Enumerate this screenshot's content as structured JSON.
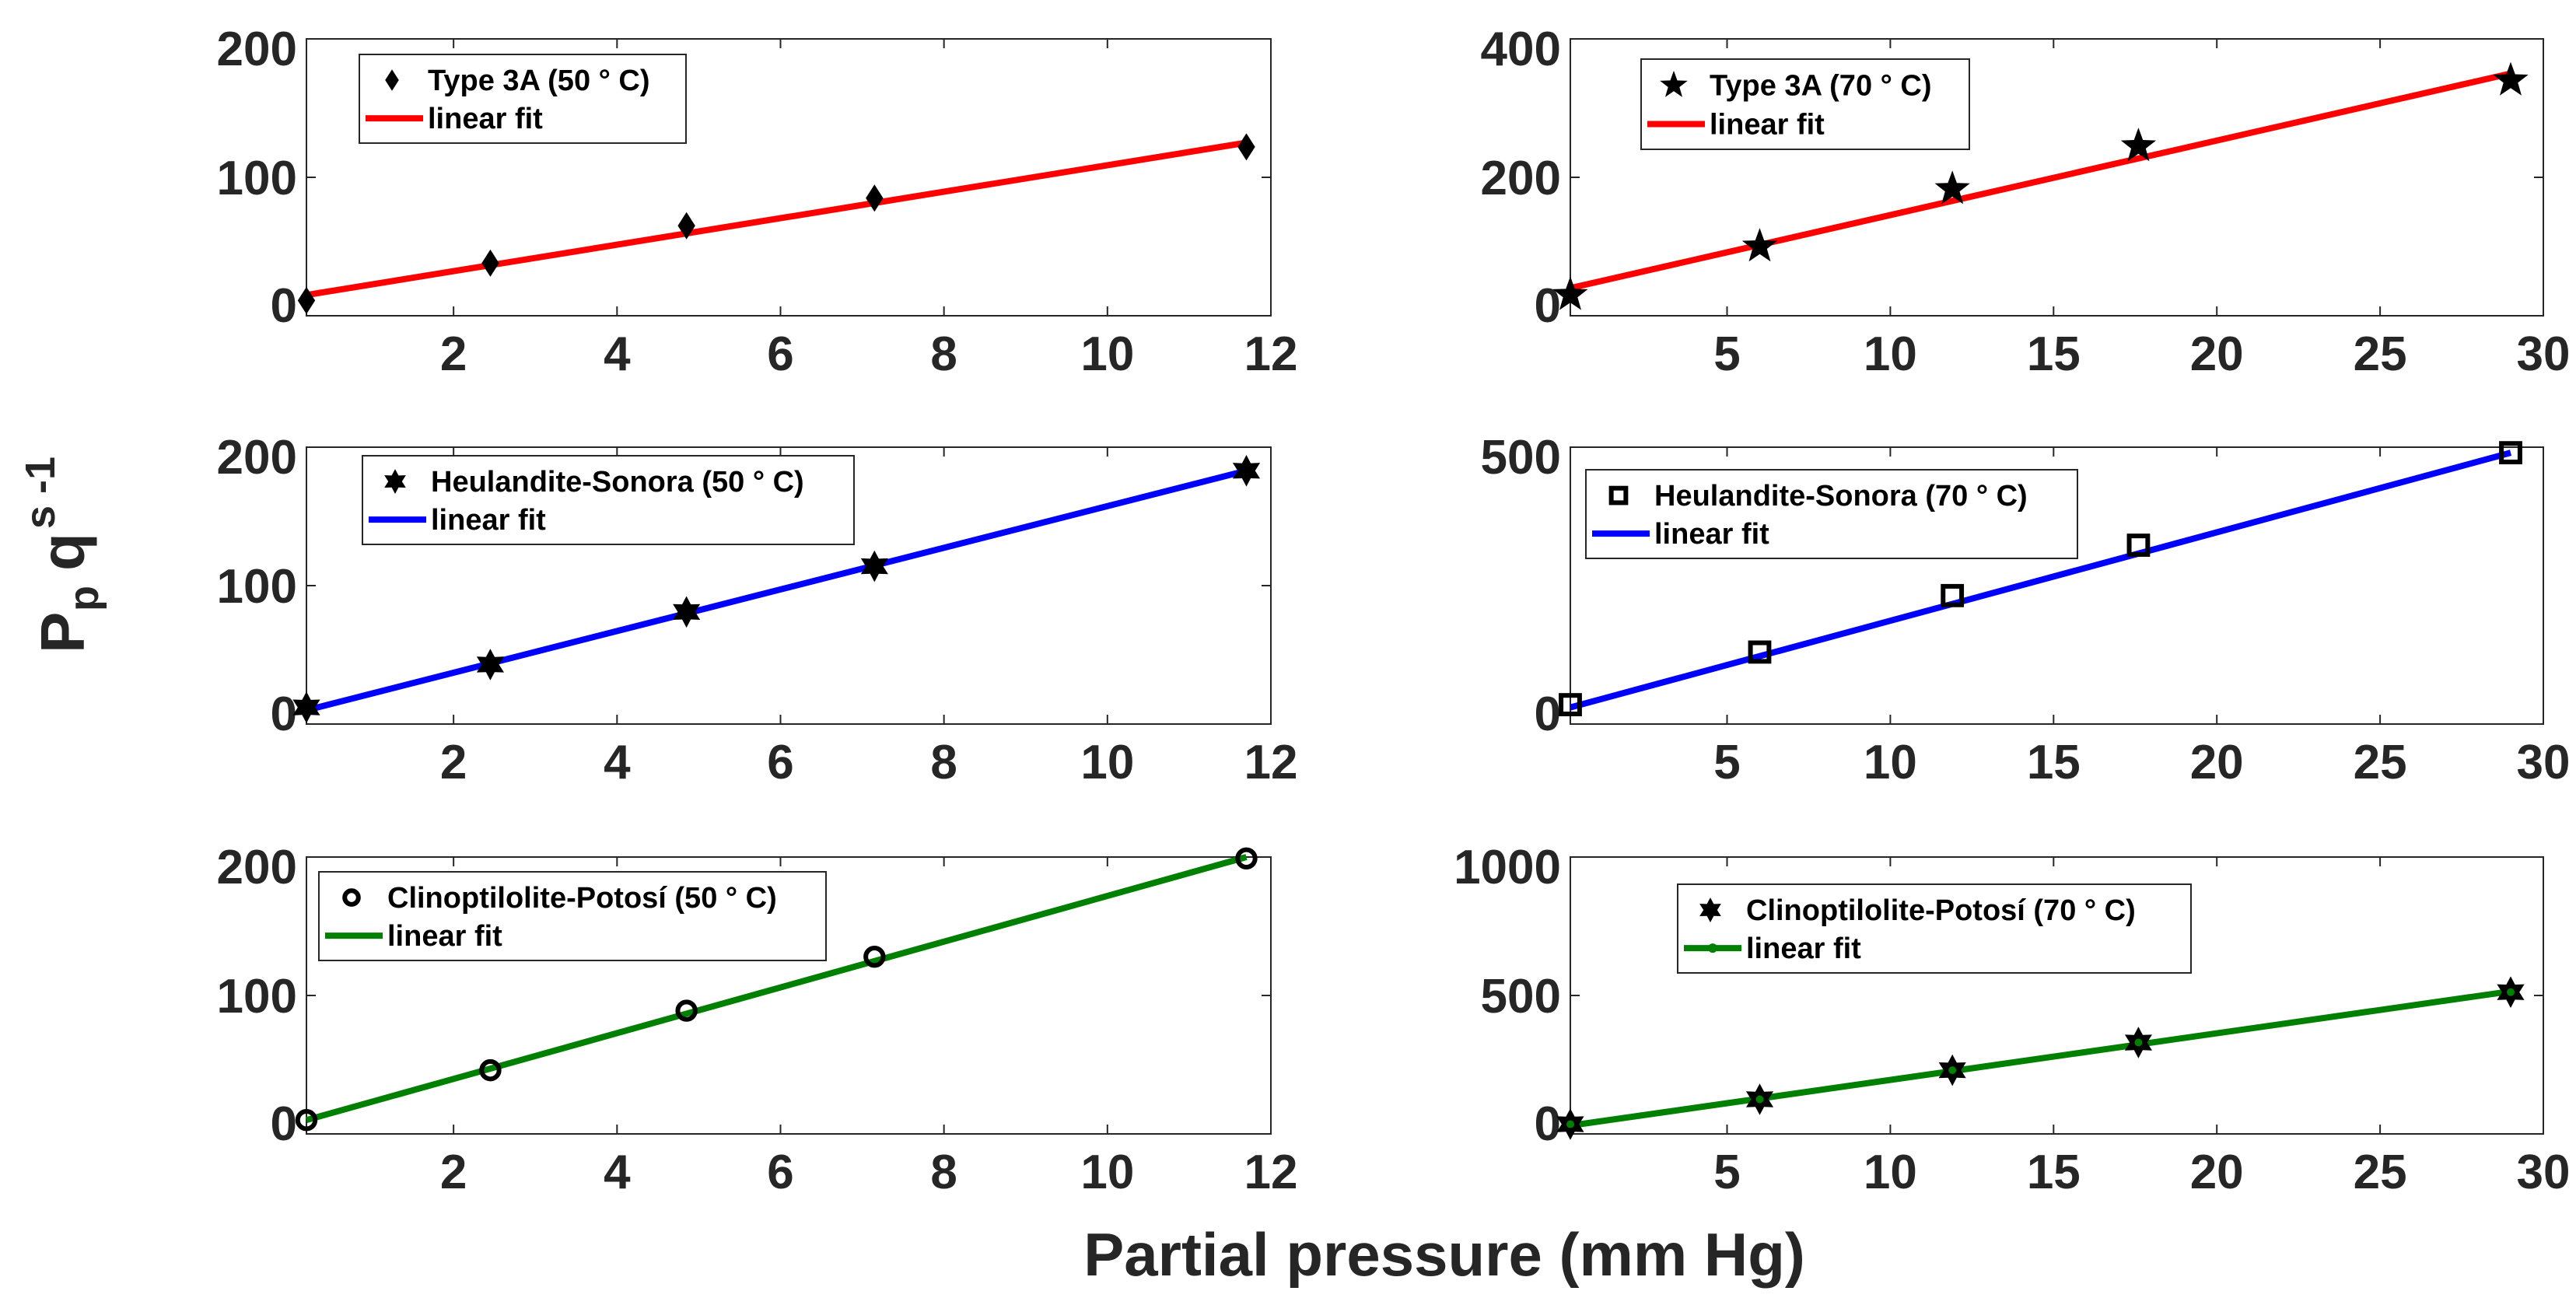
{
  "figure": {
    "xlabel": "Partial pressure (mm Hg)",
    "ylabel_main": "P",
    "ylabel_sub": "p",
    "ylabel_q": "q",
    "ylabel_sup": "s -1"
  },
  "chart_data": [
    {
      "type": "scatter",
      "title": "",
      "xlim": [
        0.2,
        12
      ],
      "ylim": [
        0,
        200
      ],
      "xticks": [
        2,
        4,
        6,
        8,
        10,
        12
      ],
      "yticks": [
        0,
        100,
        200
      ],
      "color": "#ff0000",
      "marker": "diamond",
      "legend_location": "top-left",
      "series": [
        {
          "name": "Type 3A (50 ° C)",
          "kind": "points",
          "x": [
            0.2,
            2.45,
            4.85,
            7.15,
            11.7
          ],
          "y": [
            11,
            38,
            65,
            85,
            122
          ]
        },
        {
          "name": "linear fit",
          "kind": "line",
          "x": [
            0.2,
            11.7
          ],
          "y": [
            15,
            125
          ]
        }
      ]
    },
    {
      "type": "scatter",
      "title": "",
      "xlim": [
        0.2,
        30
      ],
      "ylim": [
        0,
        400
      ],
      "xticks": [
        5,
        10,
        15,
        20,
        25,
        30
      ],
      "yticks": [
        0,
        200,
        400
      ],
      "color": "#ff0000",
      "marker": "star5",
      "legend_location": "top-left",
      "series": [
        {
          "name": "Type 3A (70 ° C)",
          "kind": "points",
          "x": [
            0.2,
            6,
            11.9,
            17.6,
            29
          ],
          "y": [
            30,
            100,
            183,
            245,
            340
          ]
        },
        {
          "name": "linear fit",
          "kind": "line",
          "x": [
            0.2,
            29
          ],
          "y": [
            40,
            350
          ]
        }
      ]
    },
    {
      "type": "scatter",
      "title": "",
      "xlim": [
        0.2,
        12
      ],
      "ylim": [
        0,
        200
      ],
      "xticks": [
        2,
        4,
        6,
        8,
        10,
        12
      ],
      "yticks": [
        0,
        100,
        200
      ],
      "color": "#0000ff",
      "marker": "star6",
      "legend_location": "top-left",
      "series": [
        {
          "name": "Heulandite-Sonora (50 ° C)",
          "kind": "points",
          "x": [
            0.2,
            2.45,
            4.85,
            7.15,
            11.7
          ],
          "y": [
            12,
            43,
            81,
            114,
            183
          ]
        },
        {
          "name": "linear fit",
          "kind": "line",
          "x": [
            0.2,
            11.7
          ],
          "y": [
            10,
            183
          ]
        }
      ]
    },
    {
      "type": "scatter",
      "title": "",
      "xlim": [
        0.2,
        30
      ],
      "ylim": [
        0,
        500
      ],
      "xticks": [
        5,
        10,
        15,
        20,
        25,
        30
      ],
      "yticks": [
        0,
        500
      ],
      "color": "#0000ff",
      "marker": "square",
      "legend_location": "top-left",
      "series": [
        {
          "name": "Heulandite-Sonora (70 ° C)",
          "kind": "points",
          "x": [
            0.2,
            6,
            11.9,
            17.6,
            29
          ],
          "y": [
            35,
            130,
            232,
            323,
            490
          ]
        },
        {
          "name": "linear fit",
          "kind": "line",
          "x": [
            0.2,
            29
          ],
          "y": [
            30,
            490
          ]
        }
      ]
    },
    {
      "type": "scatter",
      "title": "",
      "xlim": [
        0.2,
        12
      ],
      "ylim": [
        0,
        200
      ],
      "xticks": [
        2,
        4,
        6,
        8,
        10,
        12
      ],
      "yticks": [
        0,
        100,
        200
      ],
      "color": "#008000",
      "marker": "circle",
      "legend_location": "top-left",
      "series": [
        {
          "name": "Clinoptilolite-Potosí (50 ° C)",
          "kind": "points",
          "x": [
            0.2,
            2.45,
            4.85,
            7.15,
            11.7
          ],
          "y": [
            10,
            46,
            89,
            128,
            199
          ]
        },
        {
          "name": "linear fit",
          "kind": "line",
          "x": [
            0.2,
            11.7
          ],
          "y": [
            10,
            200
          ]
        }
      ]
    },
    {
      "type": "scatter",
      "title": "",
      "xlim": [
        0.2,
        30
      ],
      "ylim": [
        0,
        1000
      ],
      "xticks": [
        5,
        10,
        15,
        20,
        25,
        30
      ],
      "yticks": [
        0,
        500,
        1000
      ],
      "color": "#008000",
      "marker": "star6",
      "legend_location": "top-left",
      "series": [
        {
          "name": "Clinoptilolite-Potosí (70 ° C)",
          "kind": "points",
          "x": [
            0.2,
            6,
            11.9,
            17.6,
            29
          ],
          "y": [
            35,
            125,
            230,
            330,
            512
          ]
        },
        {
          "name": "linear fit",
          "kind": "line",
          "x": [
            0.2,
            29
          ],
          "y": [
            30,
            515
          ]
        }
      ]
    }
  ]
}
